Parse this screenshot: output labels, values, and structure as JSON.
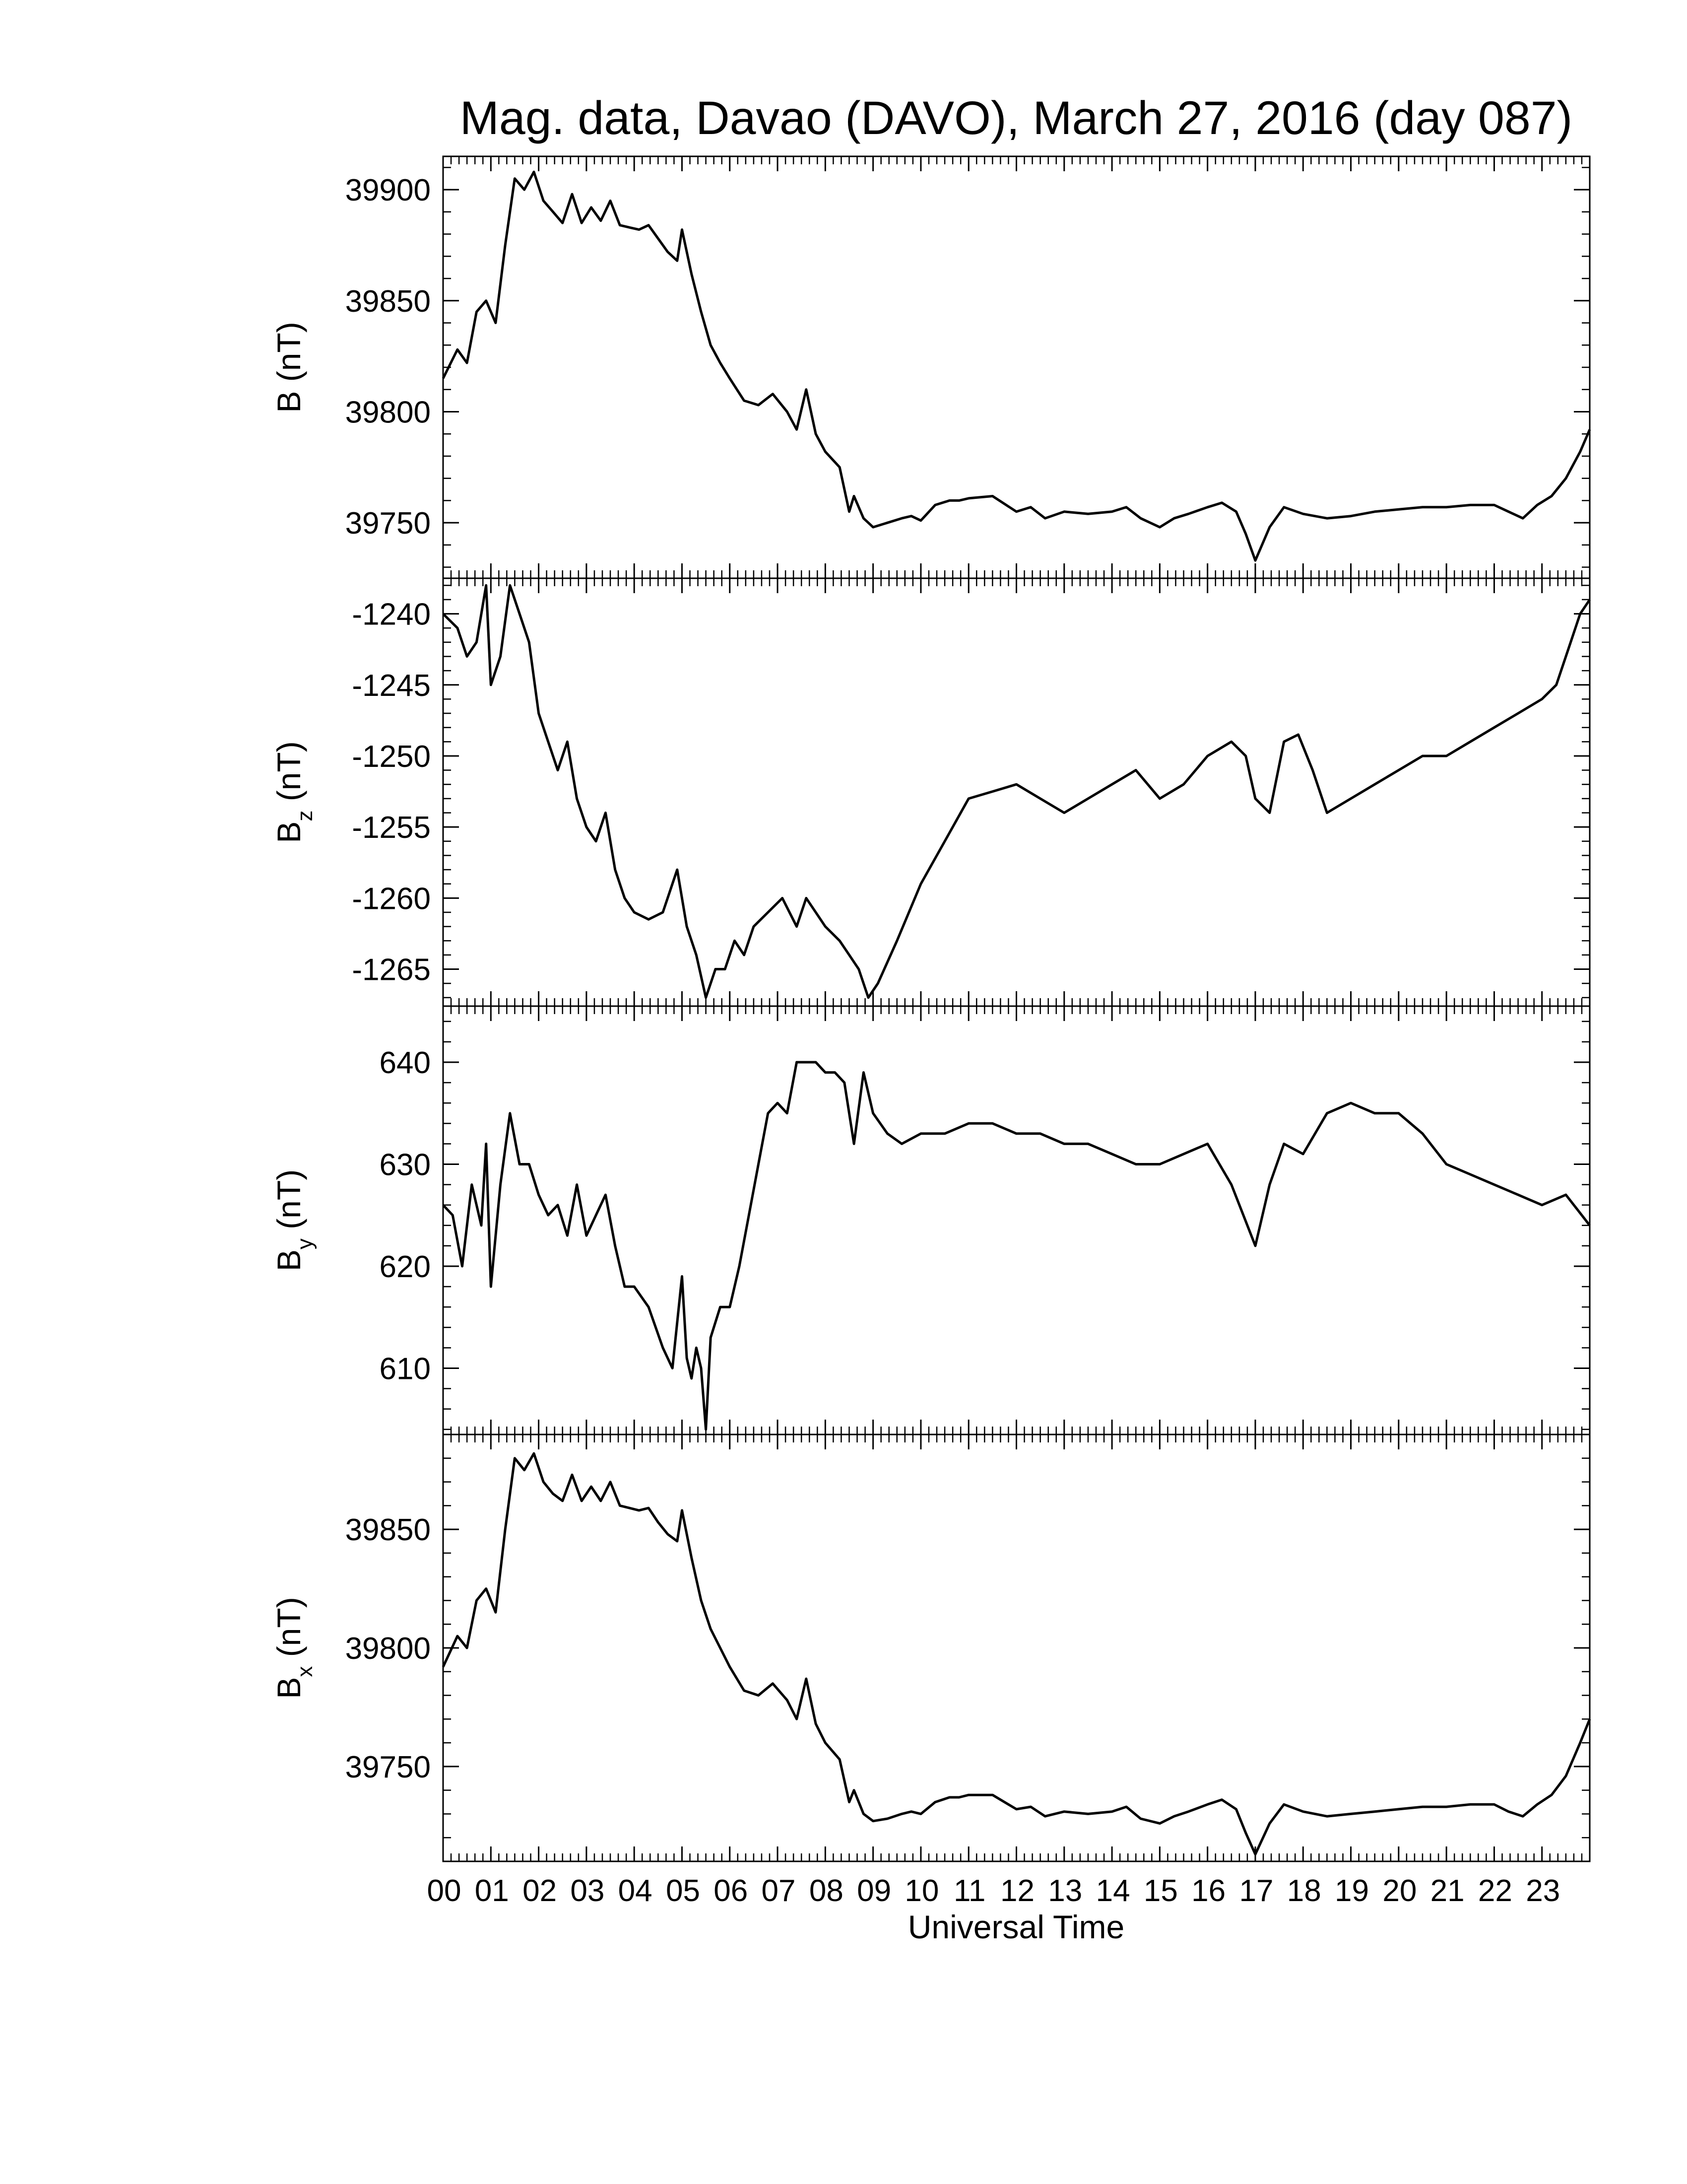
{
  "figure": {
    "title": "Mag. data, Davao (DAVO), March 27, 2016 (day 087)",
    "xlabel": "Universal Time"
  },
  "chart_data": [
    {
      "type": "line",
      "ylabel": "B (nT)",
      "ylabel_main": "B",
      "ylabel_sub": "",
      "ylabel_unit": " (nT)",
      "ylim": [
        39725,
        39915
      ],
      "yticks": [
        39750,
        39800,
        39850,
        39900
      ],
      "xlim": [
        0,
        24
      ],
      "xticks": [
        "00",
        "01",
        "02",
        "03",
        "04",
        "05",
        "06",
        "07",
        "08",
        "09",
        "10",
        "11",
        "12",
        "13",
        "14",
        "15",
        "16",
        "17",
        "18",
        "19",
        "20",
        "21",
        "22",
        "23"
      ],
      "color": "#000000",
      "x": [
        0,
        0.3,
        0.5,
        0.7,
        0.9,
        1.1,
        1.3,
        1.5,
        1.7,
        1.9,
        2.1,
        2.3,
        2.5,
        2.7,
        2.9,
        3.1,
        3.3,
        3.5,
        3.7,
        3.9,
        4.1,
        4.3,
        4.5,
        4.7,
        4.9,
        5.0,
        5.2,
        5.4,
        5.6,
        5.8,
        6.0,
        6.3,
        6.6,
        6.9,
        7.2,
        7.4,
        7.6,
        7.8,
        8.0,
        8.3,
        8.5,
        8.6,
        8.8,
        9.0,
        9.3,
        9.6,
        9.8,
        10.0,
        10.3,
        10.6,
        10.8,
        11.0,
        11.5,
        12.0,
        12.3,
        12.6,
        13.0,
        13.5,
        14.0,
        14.3,
        14.6,
        15.0,
        15.3,
        15.6,
        16.0,
        16.3,
        16.6,
        16.8,
        17.0,
        17.3,
        17.6,
        18.0,
        18.5,
        19.0,
        19.5,
        20.0,
        20.5,
        21.0,
        21.5,
        22.0,
        22.3,
        22.6,
        22.9,
        23.2,
        23.5,
        23.8,
        24.0
      ],
      "y": [
        39815,
        39828,
        39822,
        39845,
        39850,
        39840,
        39875,
        39905,
        39900,
        39908,
        39895,
        39890,
        39885,
        39898,
        39885,
        39892,
        39886,
        39895,
        39884,
        39883,
        39882,
        39884,
        39878,
        39872,
        39868,
        39882,
        39862,
        39845,
        39830,
        39822,
        39815,
        39805,
        39803,
        39808,
        39800,
        39792,
        39810,
        39790,
        39782,
        39775,
        39755,
        39762,
        39752,
        39748,
        39750,
        39752,
        39753,
        39751,
        39758,
        39760,
        39760,
        39761,
        39762,
        39755,
        39757,
        39752,
        39755,
        39754,
        39755,
        39757,
        39752,
        39748,
        39752,
        39754,
        39757,
        39759,
        39755,
        39745,
        39733,
        39748,
        39757,
        39754,
        39752,
        39753,
        39755,
        39756,
        39757,
        39757,
        39758,
        39758,
        39755,
        39752,
        39758,
        39762,
        39770,
        39782,
        39792
      ]
    },
    {
      "type": "line",
      "ylabel": "Bz (nT)",
      "ylabel_main": "B",
      "ylabel_sub": "z",
      "ylabel_unit": " (nT)",
      "ylim": [
        -1267.6,
        -1237.5
      ],
      "yticks": [
        -1240,
        -1245,
        -1250,
        -1255,
        -1260,
        -1265
      ],
      "xlim": [
        0,
        24
      ],
      "xticks": [
        "00",
        "01",
        "02",
        "03",
        "04",
        "05",
        "06",
        "07",
        "08",
        "09",
        "10",
        "11",
        "12",
        "13",
        "14",
        "15",
        "16",
        "17",
        "18",
        "19",
        "20",
        "21",
        "22",
        "23"
      ],
      "color": "#000000",
      "x": [
        0,
        0.3,
        0.5,
        0.7,
        0.9,
        1.0,
        1.2,
        1.4,
        1.6,
        1.8,
        2.0,
        2.2,
        2.4,
        2.6,
        2.8,
        3.0,
        3.2,
        3.4,
        3.6,
        3.8,
        4.0,
        4.3,
        4.6,
        4.9,
        5.1,
        5.3,
        5.5,
        5.7,
        5.9,
        6.1,
        6.3,
        6.5,
        6.8,
        7.1,
        7.4,
        7.6,
        7.8,
        8.0,
        8.3,
        8.5,
        8.7,
        8.9,
        9.1,
        9.5,
        10.0,
        10.5,
        11.0,
        11.5,
        12.0,
        12.5,
        13.0,
        13.5,
        14.0,
        14.5,
        15.0,
        15.5,
        16.0,
        16.5,
        16.8,
        17.0,
        17.3,
        17.6,
        17.9,
        18.2,
        18.5,
        19.0,
        19.5,
        20.0,
        20.5,
        21.0,
        21.5,
        22.0,
        22.5,
        23.0,
        23.3,
        23.6,
        23.8,
        24.0
      ],
      "y": [
        -1240,
        -1241,
        -1243,
        -1242,
        -1238,
        -1245,
        -1243,
        -1238,
        -1240,
        -1242,
        -1247,
        -1249,
        -1251,
        -1249,
        -1253,
        -1255,
        -1256,
        -1254,
        -1258,
        -1260,
        -1261,
        -1261.5,
        -1261,
        -1258,
        -1262,
        -1264,
        -1267,
        -1265,
        -1265,
        -1263,
        -1264,
        -1262,
        -1261,
        -1260,
        -1262,
        -1260,
        -1261,
        -1262,
        -1263,
        -1264,
        -1265,
        -1267,
        -1266,
        -1263,
        -1259,
        -1256,
        -1253,
        -1252.5,
        -1252,
        -1253,
        -1254,
        -1253,
        -1252,
        -1251,
        -1253,
        -1252,
        -1250,
        -1249,
        -1250,
        -1253,
        -1254,
        -1249,
        -1248.5,
        -1251,
        -1254,
        -1253,
        -1252,
        -1251,
        -1250,
        -1250,
        -1249,
        -1248,
        -1247,
        -1246,
        -1245,
        -1242,
        -1240,
        -1239
      ]
    },
    {
      "type": "line",
      "ylabel": "By (nT)",
      "ylabel_main": "B",
      "ylabel_sub": "y",
      "ylabel_unit": " (nT)",
      "ylim": [
        603.5,
        645.5
      ],
      "yticks": [
        610,
        620,
        630,
        640
      ],
      "xlim": [
        0,
        24
      ],
      "xticks": [
        "00",
        "01",
        "02",
        "03",
        "04",
        "05",
        "06",
        "07",
        "08",
        "09",
        "10",
        "11",
        "12",
        "13",
        "14",
        "15",
        "16",
        "17",
        "18",
        "19",
        "20",
        "21",
        "22",
        "23"
      ],
      "color": "#000000",
      "x": [
        0,
        0.2,
        0.4,
        0.6,
        0.8,
        0.9,
        1.0,
        1.2,
        1.4,
        1.6,
        1.8,
        2.0,
        2.2,
        2.4,
        2.6,
        2.8,
        3.0,
        3.2,
        3.4,
        3.6,
        3.8,
        4.0,
        4.3,
        4.6,
        4.8,
        5.0,
        5.1,
        5.2,
        5.3,
        5.4,
        5.5,
        5.6,
        5.8,
        6.0,
        6.2,
        6.4,
        6.6,
        6.8,
        7.0,
        7.2,
        7.4,
        7.6,
        7.8,
        8.0,
        8.2,
        8.4,
        8.6,
        8.8,
        9.0,
        9.3,
        9.6,
        10.0,
        10.5,
        11.0,
        11.5,
        12.0,
        12.5,
        13.0,
        13.5,
        14.0,
        14.5,
        15.0,
        15.5,
        16.0,
        16.5,
        17.0,
        17.3,
        17.6,
        18.0,
        18.5,
        19.0,
        19.5,
        20.0,
        20.5,
        21.0,
        21.5,
        22.0,
        22.5,
        23.0,
        23.5,
        24.0
      ],
      "y": [
        626,
        625,
        620,
        628,
        624,
        632,
        618,
        628,
        635,
        630,
        630,
        627,
        625,
        626,
        623,
        628,
        623,
        625,
        627,
        622,
        618,
        618,
        616,
        612,
        610,
        619,
        611,
        609,
        612,
        610,
        604,
        613,
        616,
        616,
        620,
        625,
        630,
        635,
        636,
        635,
        640,
        640,
        640,
        639,
        639,
        638,
        632,
        639,
        635,
        633,
        632,
        633,
        633,
        634,
        634,
        633,
        633,
        632,
        632,
        631,
        630,
        630,
        631,
        632,
        628,
        622,
        628,
        632,
        631,
        635,
        636,
        635,
        635,
        633,
        630,
        629,
        628,
        627,
        626,
        627,
        624
      ]
    },
    {
      "type": "line",
      "ylabel": "Bx (nT)",
      "ylabel_main": "B",
      "ylabel_sub": "x",
      "ylabel_unit": " (nT)",
      "ylim": [
        39710,
        39890
      ],
      "yticks": [
        39750,
        39800,
        39850
      ],
      "xlim": [
        0,
        24
      ],
      "xticks": [
        "00",
        "01",
        "02",
        "03",
        "04",
        "05",
        "06",
        "07",
        "08",
        "09",
        "10",
        "11",
        "12",
        "13",
        "14",
        "15",
        "16",
        "17",
        "18",
        "19",
        "20",
        "21",
        "22",
        "23"
      ],
      "color": "#000000",
      "x": [
        0,
        0.3,
        0.5,
        0.7,
        0.9,
        1.1,
        1.3,
        1.5,
        1.7,
        1.9,
        2.1,
        2.3,
        2.5,
        2.7,
        2.9,
        3.1,
        3.3,
        3.5,
        3.7,
        3.9,
        4.1,
        4.3,
        4.5,
        4.7,
        4.9,
        5.0,
        5.2,
        5.4,
        5.6,
        5.8,
        6.0,
        6.3,
        6.6,
        6.9,
        7.2,
        7.4,
        7.6,
        7.8,
        8.0,
        8.3,
        8.5,
        8.6,
        8.8,
        9.0,
        9.3,
        9.6,
        9.8,
        10.0,
        10.3,
        10.6,
        10.8,
        11.0,
        11.5,
        12.0,
        12.3,
        12.6,
        13.0,
        13.5,
        14.0,
        14.3,
        14.6,
        15.0,
        15.3,
        15.6,
        16.0,
        16.3,
        16.6,
        16.8,
        17.0,
        17.3,
        17.6,
        18.0,
        18.5,
        19.0,
        19.5,
        20.0,
        20.5,
        21.0,
        21.5,
        22.0,
        22.3,
        22.6,
        22.9,
        23.2,
        23.5,
        23.8,
        24.0
      ],
      "y": [
        39792,
        39805,
        39800,
        39820,
        39825,
        39815,
        39850,
        39880,
        39875,
        39882,
        39870,
        39865,
        39862,
        39873,
        39862,
        39868,
        39862,
        39870,
        39860,
        39859,
        39858,
        39859,
        39853,
        39848,
        39845,
        39858,
        39838,
        39820,
        39808,
        39800,
        39792,
        39782,
        39780,
        39785,
        39778,
        39770,
        39787,
        39768,
        39760,
        39753,
        39735,
        39740,
        39730,
        39727,
        39728,
        39730,
        39731,
        39730,
        39735,
        39737,
        39737,
        39738,
        39738,
        39732,
        39733,
        39729,
        39731,
        39730,
        39731,
        39733,
        39728,
        39726,
        39729,
        39731,
        39734,
        39736,
        39732,
        39722,
        39713,
        39726,
        39734,
        39731,
        39729,
        39730,
        39731,
        39732,
        39733,
        39733,
        39734,
        39734,
        39731,
        39729,
        39734,
        39738,
        39746,
        39760,
        39770
      ]
    }
  ]
}
